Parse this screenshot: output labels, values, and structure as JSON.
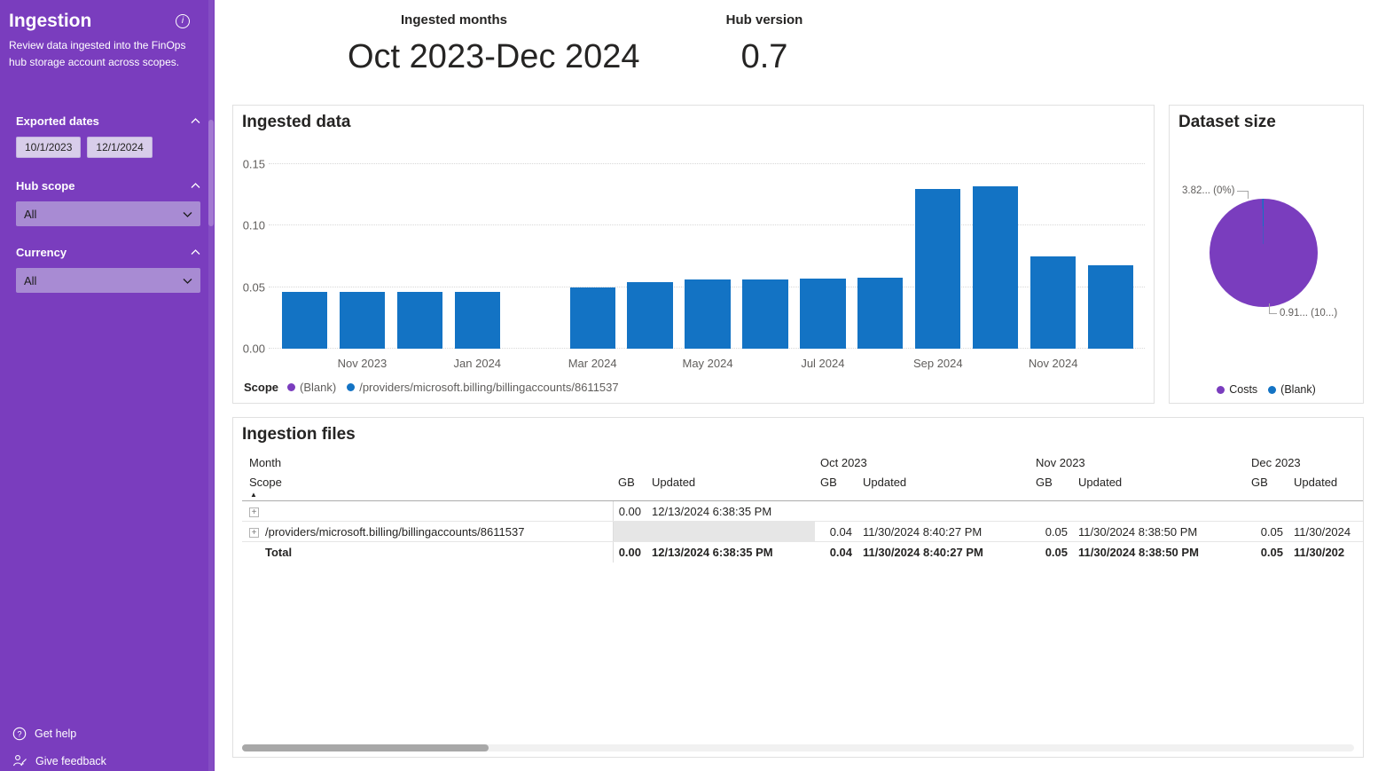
{
  "sidebar": {
    "title": "Ingestion",
    "description": "Review data ingested into the FinOps hub storage account across scopes.",
    "exported_dates": {
      "label": "Exported dates",
      "chips": [
        "10/1/2023",
        "12/1/2024"
      ]
    },
    "hub_scope": {
      "label": "Hub scope",
      "value": "All"
    },
    "currency": {
      "label": "Currency",
      "value": "All"
    },
    "footer": {
      "get_help": "Get help",
      "give_feedback": "Give feedback"
    }
  },
  "kpis": {
    "ingested_months": {
      "label": "Ingested months",
      "value": "Oct 2023-Dec 2024"
    },
    "hub_version": {
      "label": "Hub version",
      "value": "0.7"
    }
  },
  "chart_data": [
    {
      "type": "bar",
      "title": "Ingested data",
      "x": [
        "Oct 2023",
        "Nov 2023",
        "Dec 2023",
        "Jan 2024",
        "Feb 2024",
        "Mar 2024",
        "Apr 2024",
        "May 2024",
        "Jun 2024",
        "Jul 2024",
        "Aug 2024",
        "Sep 2024",
        "Oct 2024",
        "Nov 2024",
        "Dec 2024"
      ],
      "values": [
        0.046,
        0.046,
        0.046,
        0.046,
        null,
        0.05,
        0.054,
        0.056,
        0.056,
        0.057,
        0.058,
        0.13,
        0.132,
        0.075,
        0.068
      ],
      "x_tick_labels": [
        "Nov 2023",
        "Jan 2024",
        "Mar 2024",
        "May 2024",
        "Jul 2024",
        "Sep 2024",
        "Nov 2024"
      ],
      "y_ticks": [
        "0.00",
        "0.05",
        "0.10",
        "0.15"
      ],
      "ylim": [
        0,
        0.15
      ],
      "grid": "horizontal-dotted",
      "bar_color": "#1373C4",
      "legend_title": "Scope",
      "legend_position": "bottom",
      "legend": [
        {
          "label": "(Blank)",
          "color": "#7A3DBE"
        },
        {
          "label": "/providers/microsoft.billing/billingaccounts/8611537",
          "color": "#1373C4"
        }
      ]
    },
    {
      "type": "pie",
      "title": "Dataset size",
      "slices": [
        {
          "label": "Costs",
          "color": "#7A3DBE",
          "fraction": 0.996,
          "callout": "0.91... (10...)"
        },
        {
          "label": "(Blank)",
          "color": "#1373C4",
          "fraction": 0.004,
          "callout": "3.82... (0%)"
        }
      ],
      "legend_position": "bottom"
    }
  ],
  "ingestion_files": {
    "title": "Ingestion files",
    "row_header_title": "Month",
    "scope_header": "Scope",
    "gb_header": "GB",
    "updated_header": "Updated",
    "month_groups": [
      "",
      "Oct 2023",
      "Nov 2023",
      "Dec 2023"
    ],
    "rows": [
      {
        "scope": "",
        "cells": [
          [
            "0.00",
            "12/13/2024 6:38:35 PM"
          ],
          [
            "",
            ""
          ],
          [
            "",
            ""
          ],
          [
            "",
            ""
          ]
        ]
      },
      {
        "scope": "/providers/microsoft.billing/billingaccounts/8611537",
        "cells": [
          [
            "",
            ""
          ],
          [
            "0.04",
            "11/30/2024 8:40:27 PM"
          ],
          [
            "0.05",
            "11/30/2024 8:38:50 PM"
          ],
          [
            "0.05",
            "11/30/2024"
          ]
        ]
      }
    ],
    "total": {
      "label": "Total",
      "cells": [
        [
          "0.00",
          "12/13/2024 6:38:35 PM"
        ],
        [
          "0.04",
          "11/30/2024 8:40:27 PM"
        ],
        [
          "0.05",
          "11/30/2024 8:38:50 PM"
        ],
        [
          "0.05",
          "11/30/202"
        ]
      ]
    }
  },
  "icons": {
    "expand": "+",
    "info": "i",
    "sort_ascending": "▲"
  },
  "colors": {
    "accent_purple": "#7A3DBE",
    "bar_blue": "#1373C4"
  }
}
